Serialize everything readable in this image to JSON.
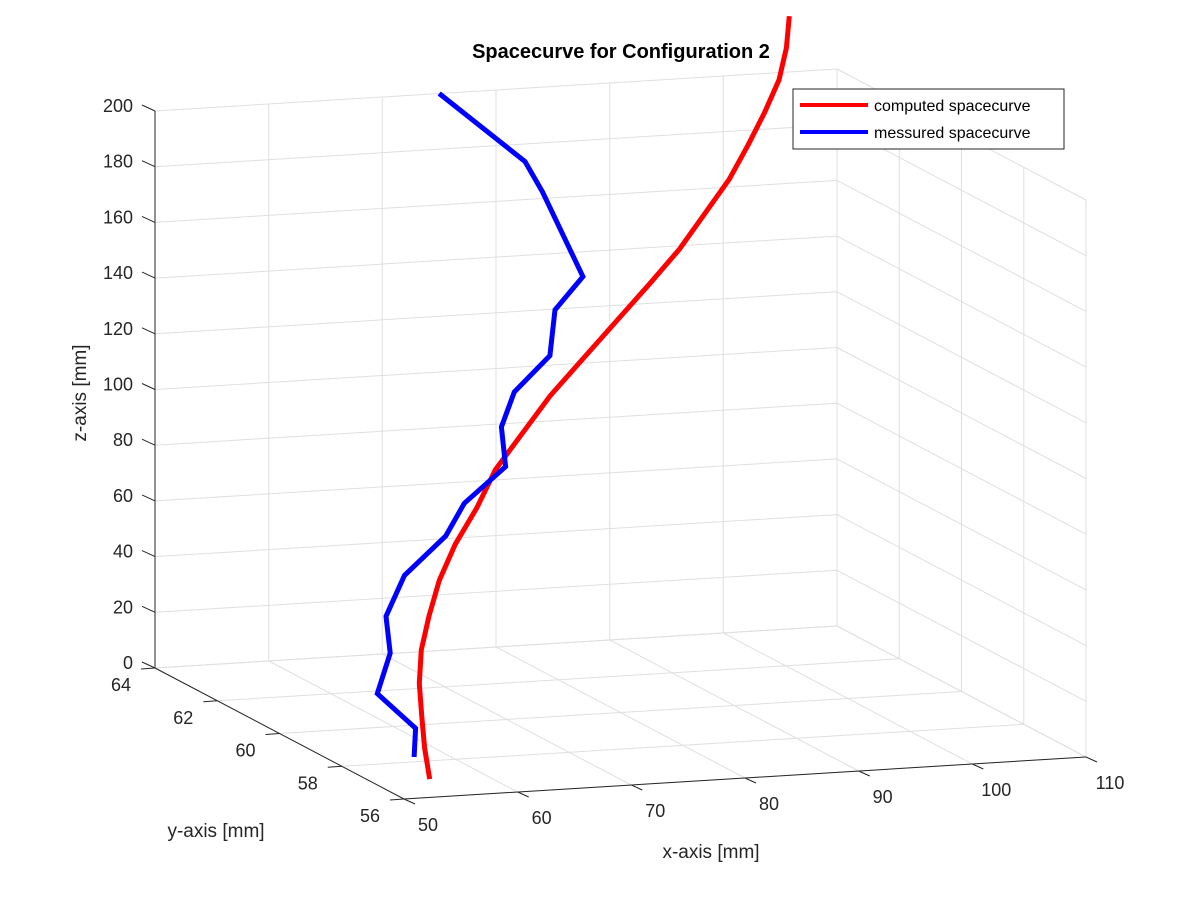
{
  "chart_data": {
    "type": "line",
    "projection": "3d",
    "title": "Spacecurve for Configuration 2",
    "xlabel": "x-axis [mm]",
    "ylabel": "y-axis [mm]",
    "zlabel": "z-axis [mm]",
    "xlim": [
      50,
      110
    ],
    "ylim": [
      56,
      64
    ],
    "zlim": [
      0,
      200
    ],
    "x_ticks": [
      50,
      60,
      70,
      80,
      90,
      100,
      110
    ],
    "y_ticks": [
      56,
      58,
      60,
      62,
      64
    ],
    "z_ticks": [
      0,
      20,
      40,
      60,
      80,
      100,
      120,
      140,
      160,
      180,
      200
    ],
    "grid": true,
    "legend_position": "top-right",
    "series": [
      {
        "name": "computed spacecurve",
        "color": "#ff0000",
        "x": [
          55.0,
          55.1,
          55.4,
          56.0,
          57.0,
          58.5,
          60.5,
          63.0,
          66.0,
          69.0,
          72.5,
          76.0,
          80.0,
          84.0,
          88.0,
          91.5,
          94.5,
          97.5,
          100.0,
          102.0,
          103.8,
          105.0,
          105.8
        ],
        "y": [
          57.0,
          57.2,
          57.4,
          57.7,
          58.0,
          58.3,
          58.7,
          59.1,
          59.5,
          60.0,
          60.4,
          60.8,
          61.2,
          61.6,
          62.0,
          62.3,
          62.6,
          62.9,
          63.2,
          63.4,
          63.6,
          63.8,
          64.0
        ],
        "z": [
          0,
          10,
          20,
          30,
          40,
          50,
          60,
          70,
          80,
          90,
          100,
          110,
          120,
          130,
          140,
          150,
          160,
          170,
          180,
          190,
          200,
          210,
          220
        ]
      },
      {
        "name": "messured spacecurve",
        "color": "#0000ff",
        "x": [
          55.0,
          56.5,
          54.5,
          57.0,
          58.0,
          61.0,
          66.0,
          69.0,
          74.0,
          75.0,
          77.5,
          82.0,
          83.0,
          86.0,
          83.0,
          82.0,
          75.0
        ],
        "y": [
          57.5,
          58.0,
          58.5,
          59.0,
          59.5,
          60.0,
          60.5,
          61.0,
          61.5,
          62.0,
          62.5,
          63.0,
          63.2,
          63.4,
          63.6,
          63.8,
          64.0
        ],
        "z": [
          5,
          12,
          22,
          33,
          43,
          54,
          64,
          72,
          81,
          92,
          101,
          110,
          125,
          135,
          165,
          175,
          200
        ]
      }
    ]
  }
}
